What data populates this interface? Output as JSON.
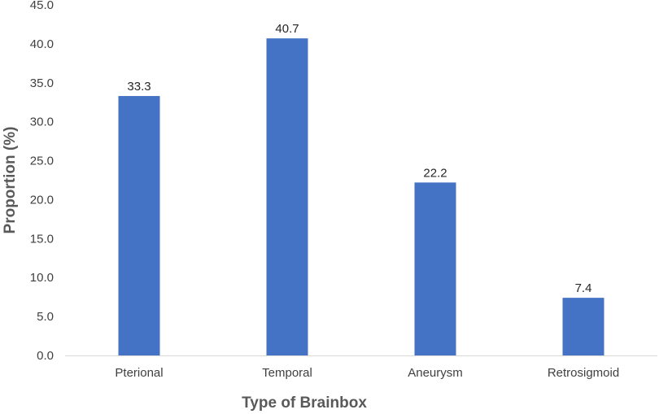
{
  "chart_data": {
    "type": "bar",
    "title": "",
    "xlabel": "Type of Brainbox",
    "ylabel": "Proportion (%)",
    "categories": [
      "Pterional",
      "Temporal",
      "Aneurysm",
      "Retrosigmoid"
    ],
    "values": [
      33.3,
      40.7,
      22.2,
      7.4
    ],
    "data_labels": [
      "33.3",
      "40.7",
      "22.2",
      "7.4"
    ],
    "ylim": [
      0,
      45
    ],
    "yticks": [
      "0.0",
      "5.0",
      "10.0",
      "15.0",
      "20.0",
      "25.0",
      "30.0",
      "35.0",
      "40.0",
      "45.0"
    ],
    "grid": false,
    "legend": "none",
    "bar_color": "#4472C4",
    "axis_color": "#D9D9D9"
  }
}
